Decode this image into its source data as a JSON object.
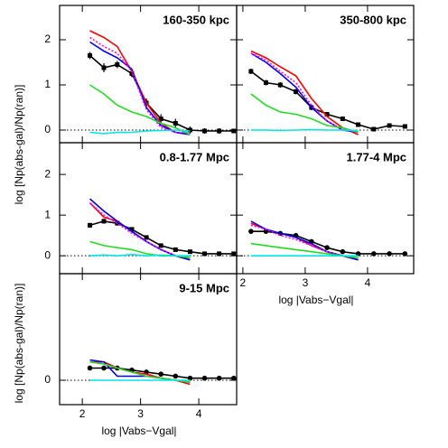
{
  "chart_data": [
    {
      "type": "line",
      "title": "160-350 kpc",
      "xlim": [
        1.61,
        4.65
      ],
      "xticks": [
        2,
        3,
        4
      ],
      "ylim": [
        -0.28,
        2.76
      ],
      "yticks": [
        0,
        1,
        2
      ],
      "ytick_labels": true,
      "xtick_labels": false,
      "hline": 0,
      "series": [
        {
          "color": "#000000",
          "marker": "square",
          "x": [
            2.13,
            2.37,
            2.6,
            2.85,
            3.1,
            3.35,
            3.6,
            3.85,
            4.1,
            4.35,
            4.6
          ],
          "values": [
            1.65,
            1.38,
            1.45,
            1.25,
            0.6,
            0.25,
            0.15,
            0.0,
            -0.02,
            -0.02,
            -0.02
          ],
          "errors": [
            0.08,
            0.1,
            0.08,
            0.08,
            0.1,
            0.1,
            0.1,
            0.08,
            0.06,
            0.06,
            0.05
          ]
        },
        {
          "color": "#ff0000",
          "x": [
            2.13,
            2.37,
            2.6,
            2.85,
            3.1,
            3.35,
            3.6,
            3.85
          ],
          "values": [
            2.2,
            2.05,
            1.85,
            1.3,
            0.6,
            0.15,
            -0.05,
            -0.1
          ]
        },
        {
          "color": "#0000ff",
          "x": [
            2.13,
            2.37,
            2.6,
            2.85,
            3.1,
            3.35,
            3.6,
            3.85
          ],
          "values": [
            1.95,
            1.75,
            1.6,
            1.35,
            0.5,
            0.1,
            -0.05,
            -0.1
          ]
        },
        {
          "color": "#ff00ff",
          "dash": true,
          "x": [
            2.13,
            2.37,
            2.6,
            2.85,
            3.1,
            3.35,
            3.6,
            3.85
          ],
          "values": [
            2.05,
            1.85,
            1.7,
            1.3,
            0.45,
            0.05,
            -0.05,
            -0.05
          ]
        },
        {
          "color": "#22dd22",
          "x": [
            2.13,
            2.37,
            2.6,
            2.85,
            3.1,
            3.35,
            3.6,
            3.85
          ],
          "values": [
            1.0,
            0.8,
            0.55,
            0.4,
            0.3,
            0.15,
            0.05,
            -0.1
          ]
        },
        {
          "color": "#00e5e5",
          "x": [
            2.13,
            2.37,
            2.6,
            2.85,
            3.1,
            3.35,
            3.6,
            3.85
          ],
          "values": [
            -0.05,
            -0.08,
            -0.05,
            -0.05,
            -0.02,
            -0.01,
            0.0,
            -0.02
          ]
        }
      ]
    },
    {
      "type": "line",
      "title": "350-800 kpc",
      "xlim": [
        1.9,
        4.74
      ],
      "xticks": [
        2,
        3,
        4
      ],
      "ylim": [
        -0.28,
        2.76
      ],
      "yticks": [
        0,
        1,
        2
      ],
      "ytick_labels": false,
      "xtick_labels": false,
      "hline": 0,
      "series": [
        {
          "color": "#000000",
          "marker": "square",
          "x": [
            2.13,
            2.37,
            2.6,
            2.85,
            3.1,
            3.35,
            3.6,
            3.85,
            4.1,
            4.35,
            4.6
          ],
          "values": [
            1.3,
            1.05,
            1.0,
            0.85,
            0.5,
            0.35,
            0.25,
            0.12,
            0.02,
            0.1,
            0.08
          ],
          "errors": [
            0.06,
            0.06,
            0.06,
            0.06,
            0.06,
            0.05,
            0.05,
            0.05,
            0.04,
            0.04,
            0.04
          ]
        },
        {
          "color": "#ff0000",
          "x": [
            2.13,
            2.37,
            2.6,
            2.85,
            3.1,
            3.35,
            3.6,
            3.85
          ],
          "values": [
            1.75,
            1.6,
            1.4,
            1.2,
            0.7,
            0.3,
            0.05,
            -0.1
          ]
        },
        {
          "color": "#0000ff",
          "x": [
            2.13,
            2.37,
            2.6,
            2.85,
            3.1,
            3.35,
            3.6,
            3.85
          ],
          "values": [
            1.7,
            1.5,
            1.25,
            0.95,
            0.5,
            0.2,
            0.0,
            -0.05
          ]
        },
        {
          "color": "#ff00ff",
          "dash": true,
          "x": [
            2.13,
            2.37,
            2.6,
            2.85,
            3.1,
            3.35,
            3.6,
            3.85
          ],
          "values": [
            1.7,
            1.55,
            1.3,
            1.05,
            0.55,
            0.2,
            0.0,
            -0.05
          ]
        },
        {
          "color": "#22dd22",
          "x": [
            2.13,
            2.37,
            2.6,
            2.85,
            3.1,
            3.35,
            3.6,
            3.85
          ],
          "values": [
            0.8,
            0.55,
            0.4,
            0.35,
            0.25,
            0.1,
            0.05,
            -0.05
          ]
        },
        {
          "color": "#00e5e5",
          "x": [
            2.13,
            2.37,
            2.6,
            2.85,
            3.1,
            3.35,
            3.6,
            3.85
          ],
          "values": [
            0.0,
            0.0,
            -0.01,
            0.0,
            0.01,
            0.0,
            0.0,
            -0.01
          ]
        }
      ]
    },
    {
      "type": "line",
      "title": "0.8-1.77 Mpc",
      "xlim": [
        1.61,
        4.65
      ],
      "xticks": [
        2,
        3,
        4
      ],
      "ylim": [
        -0.44,
        2.78
      ],
      "yticks": [
        0,
        1,
        2
      ],
      "ytick_labels": true,
      "xtick_labels": false,
      "hline": 0,
      "series": [
        {
          "color": "#000000",
          "marker": "square",
          "x": [
            2.13,
            2.37,
            2.6,
            2.85,
            3.1,
            3.35,
            3.6,
            3.85,
            4.1,
            4.35,
            4.6
          ],
          "values": [
            0.75,
            0.85,
            0.8,
            0.65,
            0.45,
            0.25,
            0.15,
            0.1,
            0.05,
            0.05,
            0.05
          ],
          "errors": [
            0.06,
            0.06,
            0.05,
            0.05,
            0.04,
            0.04,
            0.03,
            0.03,
            0.03,
            0.03,
            0.03
          ]
        },
        {
          "color": "#ff0000",
          "x": [
            2.13,
            2.37,
            2.6,
            2.85,
            3.1,
            3.35,
            3.6,
            3.85
          ],
          "values": [
            1.3,
            0.95,
            0.85,
            0.6,
            0.35,
            0.15,
            0.0,
            -0.1
          ]
        },
        {
          "color": "#0000ff",
          "x": [
            2.13,
            2.37,
            2.6,
            2.85,
            3.1,
            3.35,
            3.6,
            3.85
          ],
          "values": [
            1.4,
            1.1,
            0.85,
            0.6,
            0.35,
            0.15,
            0.0,
            -0.1
          ]
        },
        {
          "color": "#ff00ff",
          "dash": true,
          "x": [
            2.13,
            2.37,
            2.6,
            2.85,
            3.1,
            3.35,
            3.6,
            3.85
          ],
          "values": [
            1.3,
            1.0,
            0.8,
            0.55,
            0.35,
            0.15,
            0.0,
            -0.05
          ]
        },
        {
          "color": "#22dd22",
          "x": [
            2.13,
            2.37,
            2.6,
            2.85,
            3.1,
            3.35,
            3.6,
            3.85
          ],
          "values": [
            0.35,
            0.25,
            0.2,
            0.15,
            0.05,
            0.0,
            0.0,
            -0.05
          ]
        },
        {
          "color": "#00e5e5",
          "x": [
            2.13,
            2.37,
            2.6,
            2.85,
            3.1,
            3.35,
            3.6,
            3.85
          ],
          "values": [
            0.0,
            0.02,
            0.0,
            0.03,
            0.0,
            0.02,
            0.0,
            0.0
          ]
        }
      ]
    },
    {
      "type": "line",
      "title": "1.77-4 Mpc",
      "xlim": [
        1.9,
        4.74
      ],
      "xticks": [
        2,
        3,
        4
      ],
      "ylim": [
        -0.44,
        2.78
      ],
      "yticks": [
        0,
        1,
        2
      ],
      "ytick_labels": false,
      "xtick_labels": true,
      "xlabel": "log |Vabs−Vgal|",
      "hline": 0,
      "series": [
        {
          "color": "#000000",
          "marker": "circle",
          "x": [
            2.13,
            2.37,
            2.6,
            2.85,
            3.1,
            3.35,
            3.6,
            3.85,
            4.1,
            4.35,
            4.6
          ],
          "values": [
            0.6,
            0.6,
            0.55,
            0.5,
            0.35,
            0.2,
            0.1,
            0.05,
            0.05,
            0.05,
            0.05
          ],
          "errors": [
            0.03,
            0.03,
            0.03,
            0.03,
            0.02,
            0.02,
            0.02,
            0.02,
            0.02,
            0.02,
            0.02
          ]
        },
        {
          "color": "#ff0000",
          "x": [
            2.13,
            2.37,
            2.6,
            2.85,
            3.1,
            3.35,
            3.6,
            3.85
          ],
          "values": [
            0.8,
            0.65,
            0.55,
            0.45,
            0.25,
            0.1,
            0.0,
            -0.1
          ]
        },
        {
          "color": "#0000ff",
          "x": [
            2.13,
            2.37,
            2.6,
            2.85,
            3.1,
            3.35,
            3.6,
            3.85
          ],
          "values": [
            0.85,
            0.65,
            0.55,
            0.45,
            0.3,
            0.1,
            0.0,
            -0.1
          ]
        },
        {
          "color": "#ff00ff",
          "dash": true,
          "x": [
            2.13,
            2.37,
            2.6,
            2.85,
            3.1,
            3.35,
            3.6,
            3.85
          ],
          "values": [
            0.75,
            0.65,
            0.5,
            0.4,
            0.25,
            0.1,
            0.0,
            -0.05
          ]
        },
        {
          "color": "#22dd22",
          "x": [
            2.13,
            2.37,
            2.6,
            2.85,
            3.1,
            3.35,
            3.6,
            3.85
          ],
          "values": [
            0.3,
            0.25,
            0.2,
            0.15,
            0.1,
            0.05,
            0.0,
            -0.05
          ]
        },
        {
          "color": "#00e5e5",
          "x": [
            2.13,
            2.37,
            2.6,
            2.85,
            3.1,
            3.35,
            3.6,
            3.85
          ],
          "values": [
            0.0,
            0.0,
            0.0,
            0.0,
            0.0,
            0.0,
            0.0,
            0.0
          ]
        }
      ]
    },
    {
      "type": "line",
      "title": "9-15 Mpc",
      "xlim": [
        1.61,
        4.65
      ],
      "xticks": [
        2,
        3,
        4
      ],
      "ylim": [
        -0.6,
        2.62
      ],
      "yticks": [
        0
      ],
      "ytick_labels": true,
      "xtick_labels": true,
      "xlabel": "log |Vabs−Vgal|",
      "ylabel": "log [Np(abs-gal)/Np(ran)]",
      "hline": 0,
      "series": [
        {
          "color": "#000000",
          "marker": "circle",
          "x": [
            2.13,
            2.37,
            2.6,
            2.85,
            3.1,
            3.35,
            3.6,
            3.85,
            4.1,
            4.35,
            4.6
          ],
          "values": [
            0.3,
            0.3,
            0.3,
            0.25,
            0.2,
            0.15,
            0.1,
            0.05,
            0.05,
            0.05,
            0.05
          ],
          "errors": [
            0.03,
            0.03,
            0.02,
            0.02,
            0.02,
            0.02,
            0.02,
            0.02,
            0.02,
            0.02,
            0.02
          ]
        },
        {
          "color": "#ff0000",
          "x": [
            2.13,
            2.37,
            2.6,
            2.85,
            3.1,
            3.35,
            3.6,
            3.85
          ],
          "values": [
            0.45,
            0.45,
            0.3,
            0.2,
            0.15,
            0.05,
            0.0,
            -0.1
          ]
        },
        {
          "color": "#0000ff",
          "x": [
            2.13,
            2.37,
            2.6,
            2.85,
            3.1,
            3.35,
            3.6,
            3.85
          ],
          "values": [
            0.5,
            0.45,
            0.1,
            0.1,
            0.1,
            0.05,
            0.0,
            -0.05
          ]
        },
        {
          "color": "#ff00ff",
          "dash": true,
          "x": [
            2.13,
            2.37,
            2.6,
            2.85,
            3.1,
            3.35,
            3.6,
            3.85
          ],
          "values": [
            0.45,
            0.4,
            0.3,
            0.2,
            0.1,
            0.05,
            0.0,
            -0.05
          ]
        },
        {
          "color": "#22dd22",
          "x": [
            2.13,
            2.37,
            2.6,
            2.85,
            3.1,
            3.35,
            3.6,
            3.85
          ],
          "values": [
            0.45,
            0.4,
            0.3,
            0.2,
            0.1,
            0.05,
            0.0,
            -0.05
          ]
        },
        {
          "color": "#00e5e5",
          "x": [
            2.13,
            2.37,
            2.6,
            2.85,
            3.1,
            3.35,
            3.6,
            3.85
          ],
          "values": [
            0.0,
            0.0,
            0.0,
            0.0,
            0.0,
            0.0,
            0.0,
            0.0
          ]
        }
      ]
    }
  ]
}
